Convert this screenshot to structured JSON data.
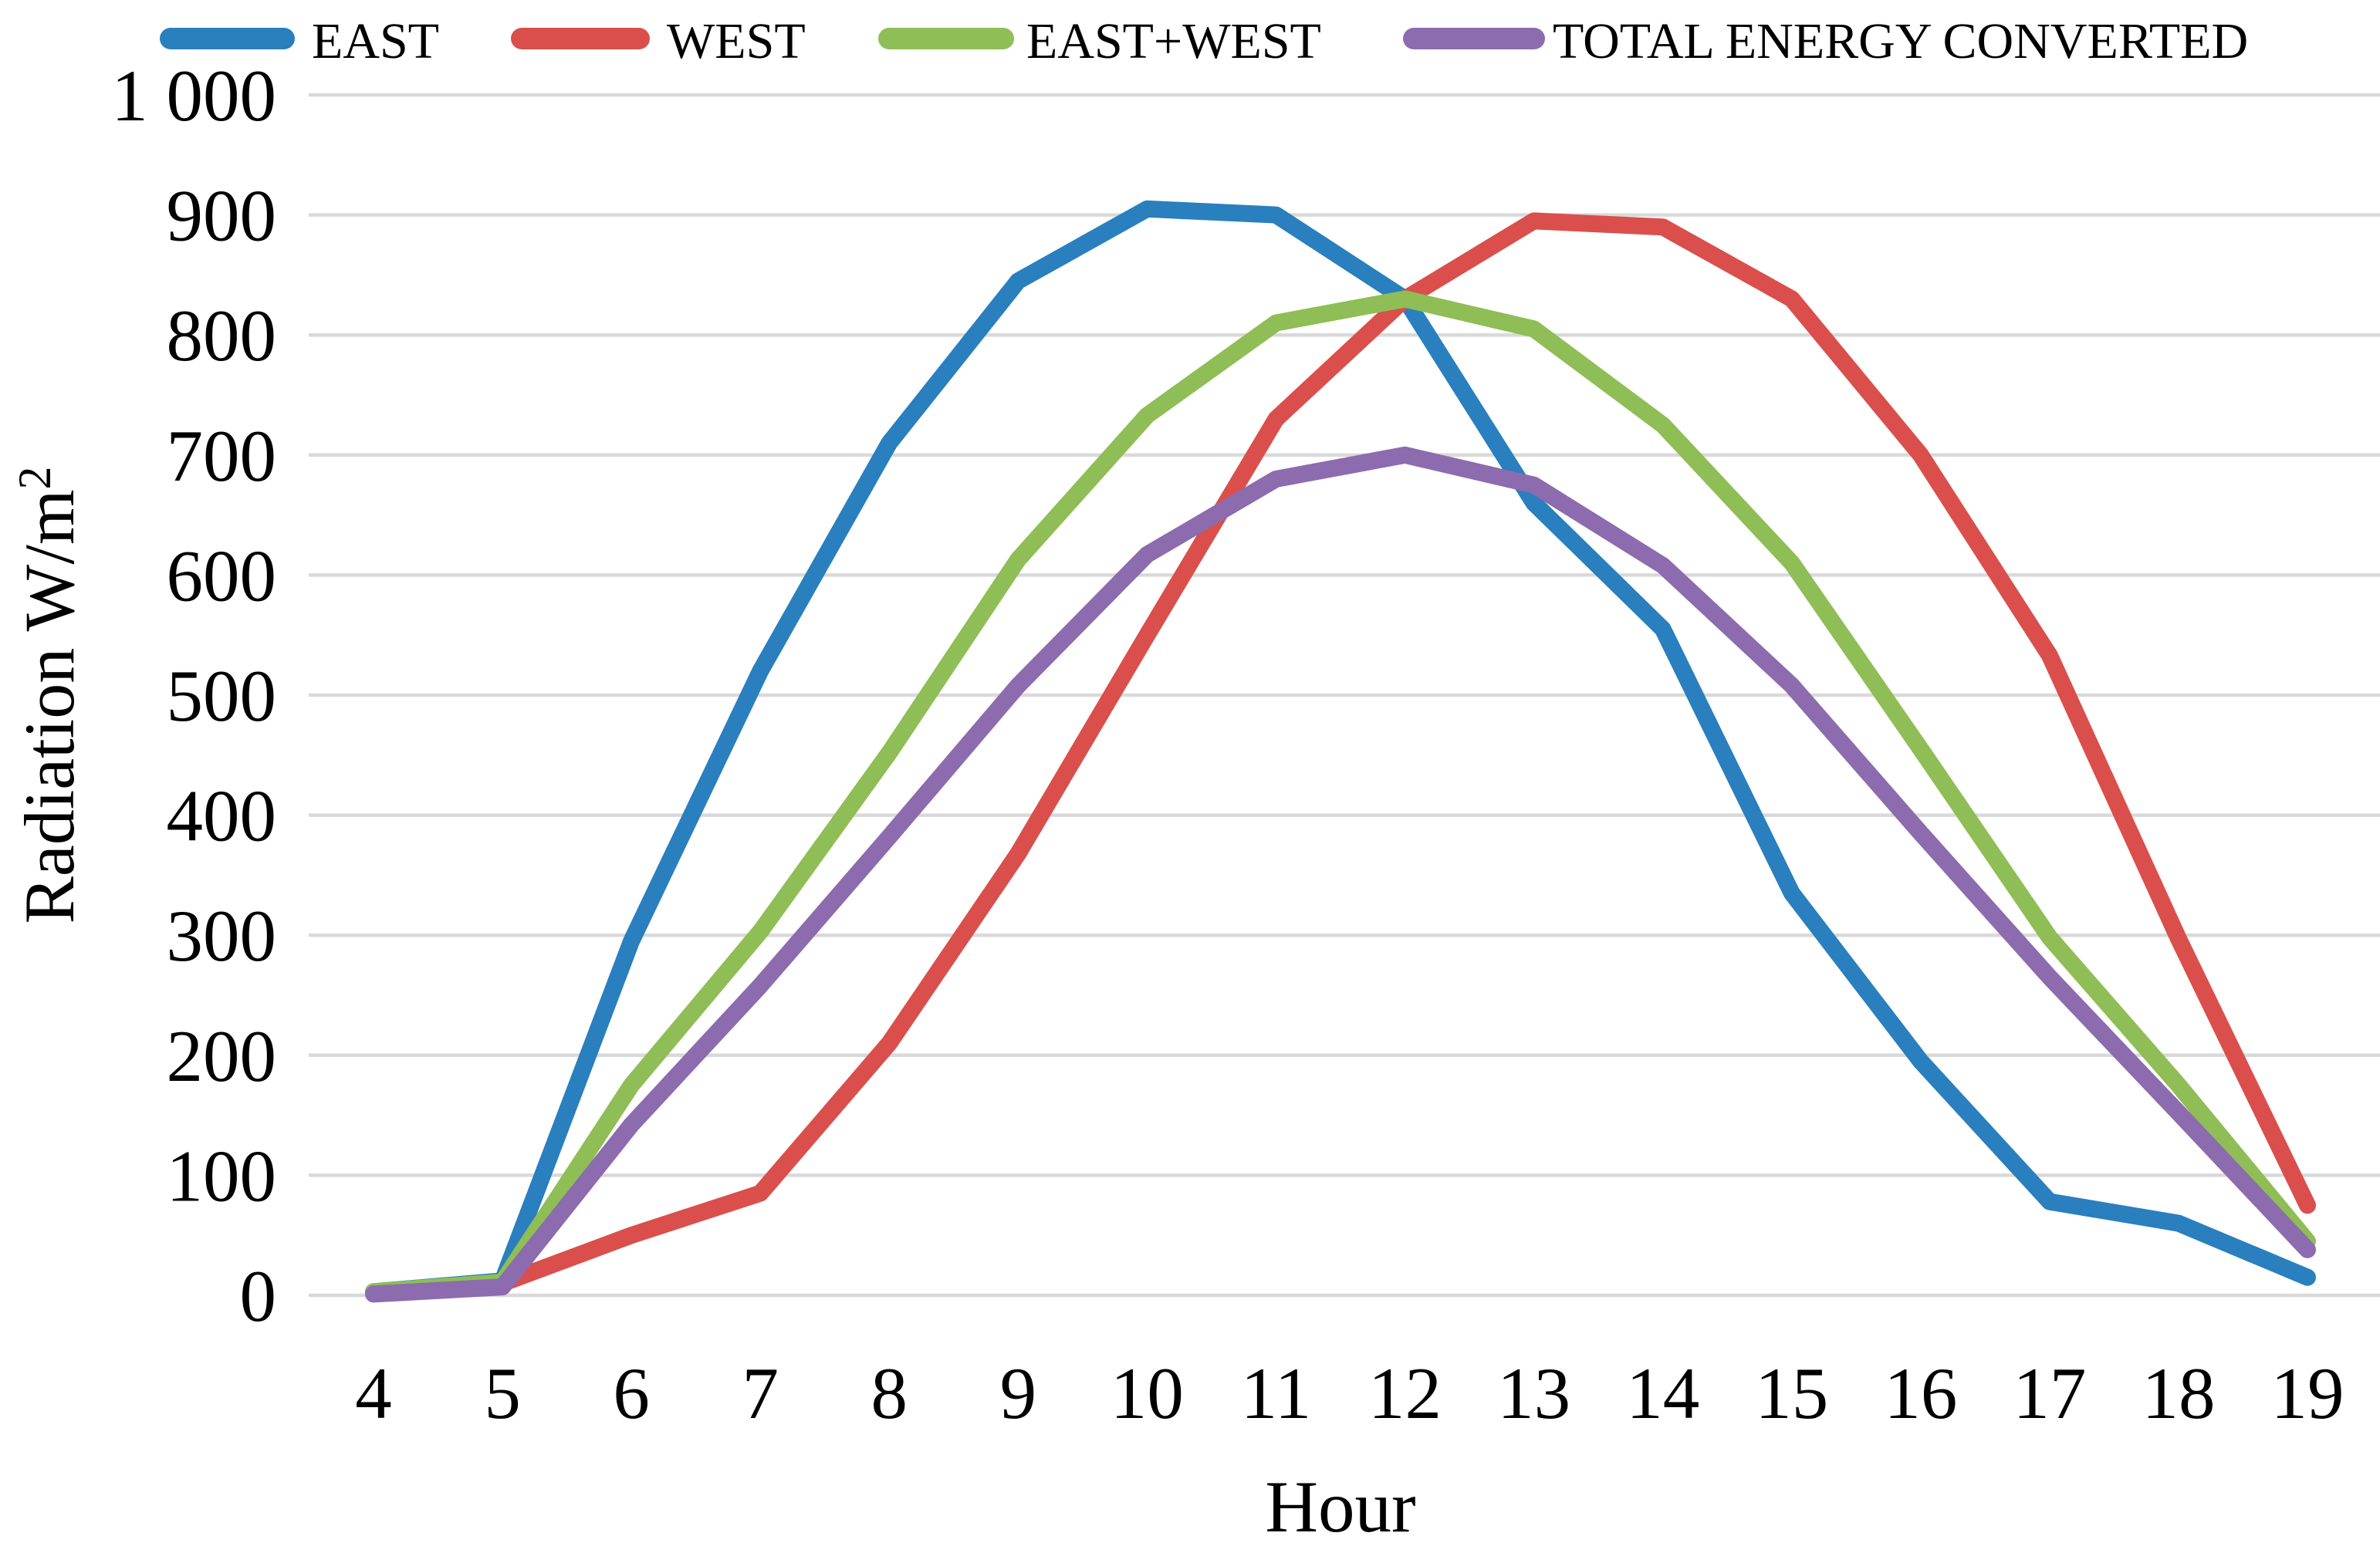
{
  "chart_data": {
    "type": "line",
    "title": "",
    "xlabel": "Hour",
    "ylabel": "Radiation W/m²",
    "ylabel_base": "Radiation W/m",
    "ylabel_superscript": "2",
    "x": [
      4,
      5,
      6,
      7,
      8,
      9,
      10,
      11,
      12,
      13,
      14,
      15,
      16,
      17,
      18,
      19
    ],
    "ylim": [
      0,
      1000
    ],
    "y_tick_step": 100,
    "y_tick_labels": [
      "0",
      "100",
      "200",
      "300",
      "400",
      "500",
      "600",
      "700",
      "800",
      "900",
      "1 000"
    ],
    "grid": "horizontal-only",
    "legend_position": "top",
    "series": [
      {
        "name": "EAST",
        "color": "#2A7FBE",
        "values": [
          3,
          12,
          295,
          520,
          710,
          845,
          905,
          900,
          830,
          660,
          555,
          335,
          195,
          78,
          60,
          15
        ]
      },
      {
        "name": "WEST",
        "color": "#DA4F4B",
        "values": [
          2,
          10,
          50,
          85,
          210,
          368,
          550,
          730,
          830,
          895,
          890,
          830,
          700,
          533,
          297,
          75
        ]
      },
      {
        "name": "EAST+WEST",
        "color": "#8EBE55",
        "values": [
          3,
          11,
          175,
          303,
          452,
          613,
          733,
          810,
          830,
          805,
          725,
          610,
          455,
          298,
          175,
          45
        ]
      },
      {
        "name": "TOTAL ENERGY CONVERTED",
        "color": "#8C6BAE",
        "values": [
          1,
          7,
          142,
          258,
          382,
          508,
          617,
          680,
          700,
          675,
          608,
          508,
          385,
          265,
          152,
          38
        ]
      }
    ]
  },
  "colors": {
    "gridline": "#D9D9D9",
    "text": "#000000",
    "background": "#FFFFFF"
  }
}
